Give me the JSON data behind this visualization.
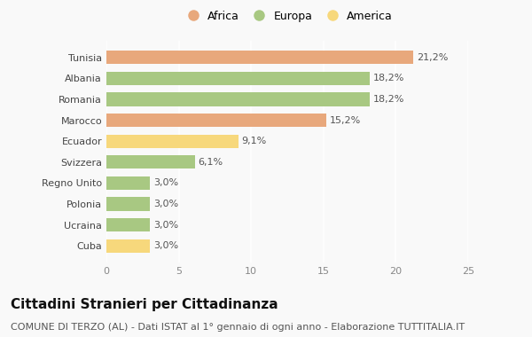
{
  "categories": [
    "Cuba",
    "Ucraina",
    "Polonia",
    "Regno Unito",
    "Svizzera",
    "Ecuador",
    "Marocco",
    "Romania",
    "Albania",
    "Tunisia"
  ],
  "values": [
    3.0,
    3.0,
    3.0,
    3.0,
    6.1,
    9.1,
    15.2,
    18.2,
    18.2,
    21.2
  ],
  "labels": [
    "3,0%",
    "3,0%",
    "3,0%",
    "3,0%",
    "6,1%",
    "9,1%",
    "15,2%",
    "18,2%",
    "18,2%",
    "21,2%"
  ],
  "colors": [
    "#f7d87c",
    "#a8c882",
    "#a8c882",
    "#a8c882",
    "#a8c882",
    "#f7d87c",
    "#e8a87c",
    "#a8c882",
    "#a8c882",
    "#e8a87c"
  ],
  "legend_items": [
    {
      "label": "Africa",
      "color": "#e8a87c"
    },
    {
      "label": "Europa",
      "color": "#a8c882"
    },
    {
      "label": "America",
      "color": "#f7d87c"
    }
  ],
  "xlim": [
    0,
    25
  ],
  "xticks": [
    0,
    5,
    10,
    15,
    20,
    25
  ],
  "title": "Cittadini Stranieri per Cittadinanza",
  "subtitle": "COMUNE DI TERZO (AL) - Dati ISTAT al 1° gennaio di ogni anno - Elaborazione TUTTITALIA.IT",
  "background_color": "#f9f9f9",
  "bar_height": 0.65,
  "title_fontsize": 11,
  "subtitle_fontsize": 8,
  "label_fontsize": 8,
  "tick_fontsize": 8,
  "legend_fontsize": 9,
  "grid_color": "#ffffff",
  "label_color": "#555555",
  "ytick_color": "#444444",
  "xtick_color": "#888888"
}
